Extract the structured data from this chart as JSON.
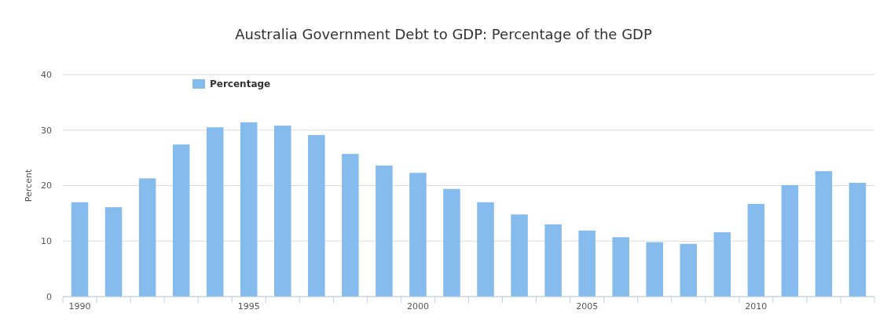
{
  "chart_data": {
    "type": "bar",
    "title": "Australia Government Debt to GDP: Percentage of the GDP",
    "ylabel": "Percent",
    "categories": [
      "1990",
      null,
      null,
      null,
      null,
      "1995",
      null,
      null,
      null,
      null,
      "2000",
      null,
      null,
      null,
      null,
      "2005",
      null,
      null,
      null,
      null,
      "2010",
      null,
      null,
      null
    ],
    "series": [
      {
        "name": "Percentage",
        "color": "#86bbee",
        "values": [
          17.0,
          16.1,
          21.3,
          27.4,
          30.5,
          31.4,
          30.8,
          29.1,
          25.7,
          23.6,
          22.3,
          19.4,
          17.0,
          14.8,
          13.0,
          11.9,
          10.7,
          9.8,
          9.5,
          11.6,
          16.7,
          20.1,
          22.6,
          20.5
        ]
      }
    ],
    "ylim": [
      0,
      40
    ],
    "yticks": [
      0,
      10,
      20,
      30,
      40
    ],
    "grid": "y",
    "legend": "top left"
  }
}
